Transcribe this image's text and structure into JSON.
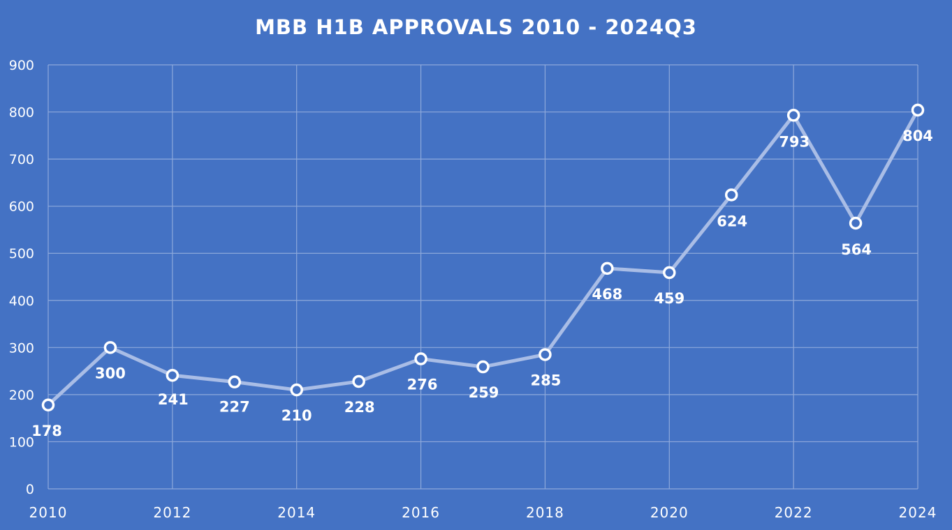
{
  "chart_data": {
    "type": "line",
    "title": "MBB H1B APPROVALS 2010 - 2024Q3",
    "xlabel": "",
    "ylabel": "",
    "x": [
      2010,
      2011,
      2012,
      2013,
      2014,
      2015,
      2016,
      2017,
      2018,
      2019,
      2020,
      2021,
      2022,
      2023,
      2024
    ],
    "series": [
      {
        "values": [
          178,
          300,
          241,
          227,
          210,
          228,
          276,
          259,
          285,
          468,
          459,
          624,
          793,
          564,
          804
        ]
      }
    ],
    "xticks": [
      "2010",
      "2012",
      "2014",
      "2016",
      "2018",
      "2020",
      "2022",
      "2024"
    ],
    "yticks": [
      "0",
      "100",
      "200",
      "300",
      "400",
      "500",
      "600",
      "700",
      "800",
      "900"
    ],
    "xlim": [
      2010,
      2024
    ],
    "ylim": [
      0,
      900
    ],
    "grid": true,
    "legend": "none",
    "colors": {
      "background": "#4472c4",
      "line": "#a9bde6",
      "marker_fill": "#4472c4",
      "marker_stroke": "#ffffff",
      "text": "#ffffff",
      "grid": "#8ea9db"
    }
  }
}
